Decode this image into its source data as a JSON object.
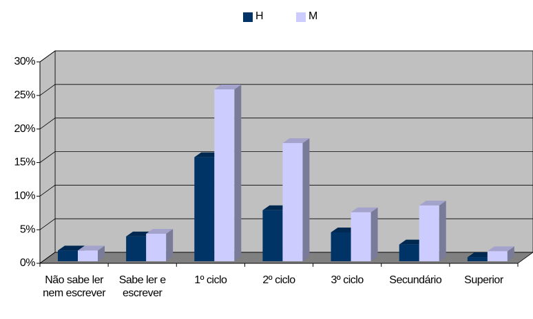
{
  "chart_data": {
    "type": "bar3d",
    "categories": [
      "Não sabe ler nem escrever",
      "Sabe ler e escrever",
      "1º ciclo",
      "2º ciclo",
      "3º ciclo",
      "Secundário",
      "Superior"
    ],
    "series": [
      {
        "name": "H",
        "color": "#003366",
        "values": [
          1.6,
          3.7,
          15.5,
          7.6,
          4.3,
          2.5,
          0.6
        ]
      },
      {
        "name": "M",
        "color": "#ccccff",
        "values": [
          1.6,
          4.1,
          25.6,
          17.6,
          7.3,
          8.3,
          1.5
        ]
      }
    ],
    "ylim": [
      0,
      30
    ],
    "yticks": [
      {
        "value": 0,
        "label": "0%"
      },
      {
        "value": 5,
        "label": "5%"
      },
      {
        "value": 10,
        "label": "10%"
      },
      {
        "value": 15,
        "label": "15%"
      },
      {
        "value": 20,
        "label": "20%"
      },
      {
        "value": 25,
        "label": "25%"
      },
      {
        "value": 30,
        "label": "30%"
      }
    ],
    "grid": true,
    "legend": "top"
  }
}
